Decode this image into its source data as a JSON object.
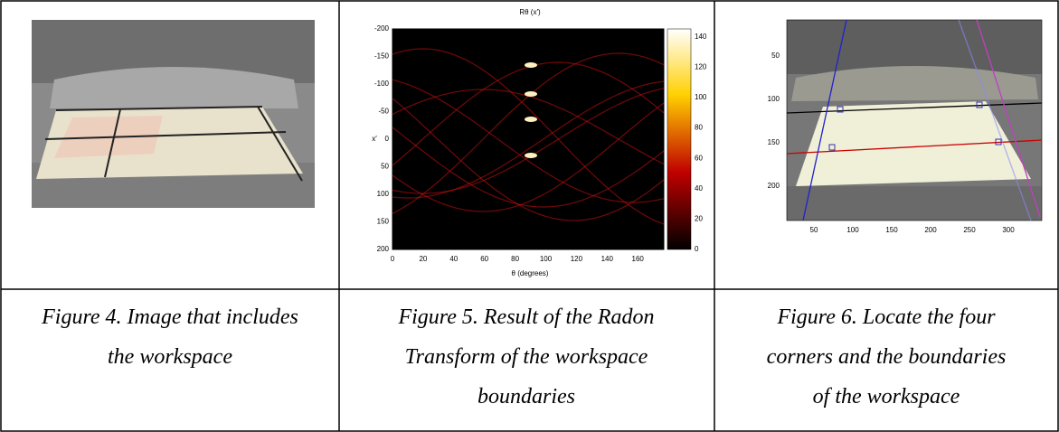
{
  "table": {
    "figures": [
      {
        "caption": [
          "Figure 4. Image that includes",
          "the workspace"
        ]
      },
      {
        "caption": [
          "Figure 5. Result of the Radon",
          "Transform of the workspace",
          "boundaries"
        ],
        "plot": {
          "title": "Rθ (x′)",
          "ylabel": "x′",
          "xlabel": "θ (degrees)",
          "yticks": [
            -200,
            -150,
            -100,
            -50,
            0,
            50,
            100,
            150,
            200
          ],
          "xticks": [
            0,
            20,
            40,
            60,
            80,
            100,
            120,
            140,
            160
          ],
          "colorbar_ticks": [
            0,
            20,
            40,
            60,
            80,
            100,
            120,
            140
          ]
        }
      },
      {
        "caption": [
          "Figure 6. Locate the four",
          "corners and the boundaries",
          "of the workspace"
        ],
        "plot": {
          "yticks": [
            50,
            100,
            150,
            200
          ],
          "xticks": [
            50,
            100,
            150,
            200,
            250,
            300
          ]
        }
      }
    ]
  }
}
